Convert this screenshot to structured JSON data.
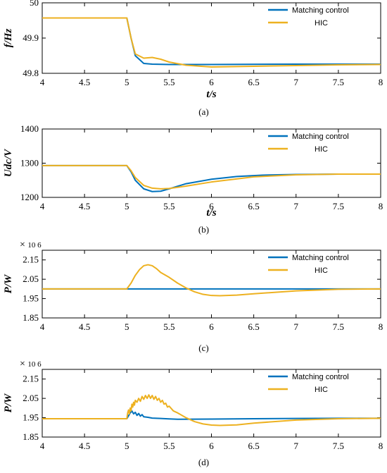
{
  "colors": {
    "matching": "#0072BD",
    "hic": "#EDB120"
  },
  "chart_data": [
    {
      "type": "line",
      "caption": "(a)",
      "ylabel": "f/Hz",
      "xlabel": "t/s",
      "xlim": [
        4,
        8
      ],
      "ylim": [
        49.8,
        50
      ],
      "xticks": [
        "4",
        "4.5",
        "5",
        "5.5",
        "6",
        "6.5",
        "7",
        "7.5",
        "8"
      ],
      "yticks": [
        "49.8",
        "49.9",
        "50"
      ],
      "multiplier": "",
      "legend": {
        "position": "top-right"
      },
      "series": [
        {
          "name": "Matching control",
          "color": "#0072BD",
          "x": [
            4,
            5,
            5.05,
            5.1,
            5.2,
            5.3,
            5.5,
            6,
            7,
            8
          ],
          "y": [
            49.957,
            49.957,
            49.9,
            49.85,
            49.828,
            49.826,
            49.825,
            49.825,
            49.826,
            49.826
          ]
        },
        {
          "name": "HIC",
          "color": "#EDB120",
          "x": [
            4,
            5,
            5.05,
            5.1,
            5.2,
            5.3,
            5.4,
            5.5,
            5.7,
            6,
            6.5,
            7,
            7.5,
            8
          ],
          "y": [
            49.957,
            49.957,
            49.9,
            49.855,
            49.843,
            49.845,
            49.84,
            49.832,
            49.823,
            49.818,
            49.82,
            49.822,
            49.824,
            49.825
          ]
        }
      ]
    },
    {
      "type": "line",
      "caption": "(b)",
      "ylabel": "Udc/V",
      "xlabel": "t/s",
      "xlim": [
        4,
        8
      ],
      "ylim": [
        1200,
        1400
      ],
      "xticks": [
        "4",
        "4.5",
        "5",
        "5.5",
        "6",
        "6.5",
        "7",
        "7.5",
        "8"
      ],
      "yticks": [
        "1200",
        "1300",
        "1400"
      ],
      "multiplier": "",
      "legend": {
        "position": "top-right"
      },
      "series": [
        {
          "name": "Matching control",
          "color": "#0072BD",
          "x": [
            4,
            5,
            5.05,
            5.1,
            5.2,
            5.3,
            5.4,
            5.5,
            5.7,
            6,
            6.3,
            6.6,
            7,
            7.5,
            8
          ],
          "y": [
            1293,
            1293,
            1275,
            1250,
            1225,
            1217,
            1218,
            1225,
            1240,
            1253,
            1261,
            1265,
            1267,
            1268,
            1268
          ]
        },
        {
          "name": "HIC",
          "color": "#EDB120",
          "x": [
            4,
            5,
            5.05,
            5.1,
            5.2,
            5.3,
            5.4,
            5.5,
            5.7,
            6,
            6.5,
            7,
            7.5,
            8
          ],
          "y": [
            1293,
            1293,
            1278,
            1258,
            1235,
            1227,
            1225,
            1226,
            1233,
            1245,
            1260,
            1266,
            1268,
            1268
          ]
        }
      ]
    },
    {
      "type": "line",
      "caption": "(c)",
      "ylabel": "P/W",
      "xlabel": "",
      "xlim": [
        4,
        8
      ],
      "ylim": [
        1.85,
        2.2
      ],
      "xticks": [
        "4",
        "4.5",
        "5",
        "5.5",
        "6",
        "6.5",
        "7",
        "7.5",
        "8"
      ],
      "yticks": [
        "1.85",
        "1.95",
        "2.05",
        "2.15"
      ],
      "multiplier": "10 6",
      "legend": {
        "position": "top-right"
      },
      "series": [
        {
          "name": "Matching control",
          "color": "#0072BD",
          "x": [
            4,
            8
          ],
          "y": [
            2.0,
            2.0
          ]
        },
        {
          "name": "HIC",
          "color": "#EDB120",
          "x": [
            4,
            5,
            5.05,
            5.1,
            5.15,
            5.2,
            5.25,
            5.3,
            5.35,
            5.4,
            5.5,
            5.6,
            5.7,
            5.8,
            5.9,
            6,
            6.1,
            6.3,
            6.5,
            7,
            7.5,
            8
          ],
          "y": [
            2.0,
            2.0,
            2.03,
            2.07,
            2.1,
            2.12,
            2.125,
            2.12,
            2.105,
            2.085,
            2.06,
            2.03,
            2.005,
            1.985,
            1.972,
            1.966,
            1.965,
            1.968,
            1.975,
            1.99,
            1.998,
            2.0
          ]
        }
      ]
    },
    {
      "type": "line",
      "caption": "(d)",
      "ylabel": "P/W",
      "xlabel": "",
      "xlim": [
        4,
        8
      ],
      "ylim": [
        1.85,
        2.2
      ],
      "xticks": [
        "4",
        "4.5",
        "5",
        "5.5",
        "6",
        "6.5",
        "7",
        "7.5",
        "8"
      ],
      "yticks": [
        "1.85",
        "1.95",
        "2.05",
        "2.15"
      ],
      "multiplier": "10 6",
      "legend": {
        "position": "top-right"
      },
      "series": [
        {
          "name": "Matching control",
          "color": "#0072BD",
          "x": [
            4,
            5,
            5.02,
            5.04,
            5.06,
            5.08,
            5.1,
            5.12,
            5.14,
            5.16,
            5.18,
            5.2,
            5.25,
            5.3,
            5.4,
            5.5,
            5.6,
            6,
            6.5,
            7,
            7.5,
            8
          ],
          "y": [
            1.945,
            1.945,
            1.96,
            1.975,
            1.985,
            1.97,
            1.978,
            1.962,
            1.972,
            1.958,
            1.966,
            1.955,
            1.952,
            1.948,
            1.946,
            1.944,
            1.942,
            1.943,
            1.945,
            1.946,
            1.947,
            1.947
          ]
        },
        {
          "name": "HIC",
          "color": "#EDB120",
          "x": [
            4,
            5,
            5.01,
            5.02,
            5.03,
            5.04,
            5.05,
            5.06,
            5.07,
            5.08,
            5.09,
            5.1,
            5.12,
            5.14,
            5.16,
            5.18,
            5.2,
            5.22,
            5.24,
            5.26,
            5.28,
            5.3,
            5.32,
            5.34,
            5.36,
            5.38,
            5.4,
            5.42,
            5.44,
            5.46,
            5.48,
            5.5,
            5.55,
            5.6,
            5.7,
            5.8,
            5.9,
            6,
            6.1,
            6.3,
            6.5,
            7,
            7.5,
            8
          ],
          "y": [
            1.945,
            1.945,
            1.975,
            1.99,
            1.97,
            2.0,
            1.985,
            2.02,
            2.005,
            2.03,
            2.015,
            2.04,
            2.03,
            2.05,
            2.035,
            2.06,
            2.045,
            2.065,
            2.05,
            2.068,
            2.05,
            2.065,
            2.045,
            2.06,
            2.04,
            2.05,
            2.03,
            2.04,
            2.02,
            2.025,
            2.005,
            2.01,
            1.985,
            1.975,
            1.95,
            1.93,
            1.918,
            1.912,
            1.91,
            1.913,
            1.922,
            1.938,
            1.945,
            1.947
          ]
        }
      ]
    }
  ]
}
